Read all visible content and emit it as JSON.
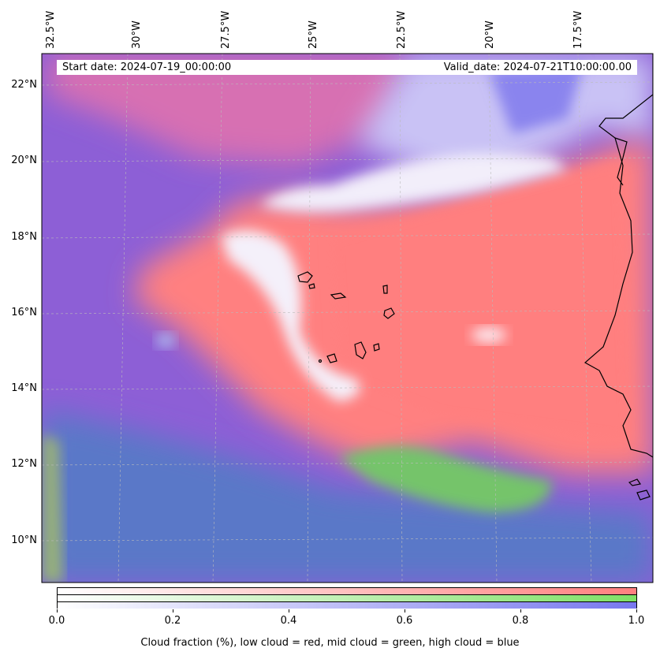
{
  "map": {
    "lon_ticks": [
      "32.5°W",
      "30°W",
      "27.5°W",
      "25°W",
      "22.5°W",
      "20°W",
      "17.5°W"
    ],
    "lat_ticks": [
      "22°N",
      "20°N",
      "18°N",
      "16°N",
      "14°N",
      "12°N",
      "10°N"
    ],
    "layers": {
      "low_cloud": "#ff7f7f",
      "mid_cloud": "#7fe066",
      "high_cloud": "#7878ee"
    },
    "coastline_color": "#000000"
  },
  "info": {
    "start_date": "Start date: 2024-07-19_00:00:00",
    "valid_date": "Valid_date: 2024-07-21T10:00:00.00"
  },
  "colorbar": {
    "ticks": [
      "0.0",
      "0.2",
      "0.4",
      "0.6",
      "0.8",
      "1.0"
    ],
    "label": "Cloud fraction (%), low cloud = red, mid cloud = green, high cloud = blue"
  }
}
